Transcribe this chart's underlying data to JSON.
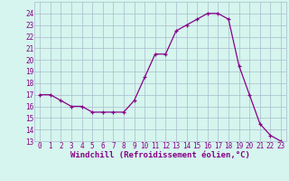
{
  "x": [
    0,
    1,
    2,
    3,
    4,
    5,
    6,
    7,
    8,
    9,
    10,
    11,
    12,
    13,
    14,
    15,
    16,
    17,
    18,
    19,
    20,
    21,
    22,
    23
  ],
  "y": [
    17.0,
    17.0,
    16.5,
    16.0,
    16.0,
    15.5,
    15.5,
    15.5,
    15.5,
    16.5,
    18.5,
    20.5,
    20.5,
    22.5,
    23.0,
    23.5,
    24.0,
    24.0,
    23.5,
    19.5,
    17.0,
    14.5,
    13.5,
    13.0
  ],
  "line_color": "#880088",
  "marker_color": "#880088",
  "bg_color": "#d5f5ee",
  "grid_color": "#aabbcc",
  "xlabel": "Windchill (Refroidissement éolien,°C)",
  "ylim": [
    13,
    25
  ],
  "xlim": [
    -0.5,
    23.5
  ],
  "yticks": [
    13,
    14,
    15,
    16,
    17,
    18,
    19,
    20,
    21,
    22,
    23,
    24
  ],
  "xticks": [
    0,
    1,
    2,
    3,
    4,
    5,
    6,
    7,
    8,
    9,
    10,
    11,
    12,
    13,
    14,
    15,
    16,
    17,
    18,
    19,
    20,
    21,
    22,
    23
  ],
  "tick_fontsize": 5.5,
  "xlabel_fontsize": 6.5
}
